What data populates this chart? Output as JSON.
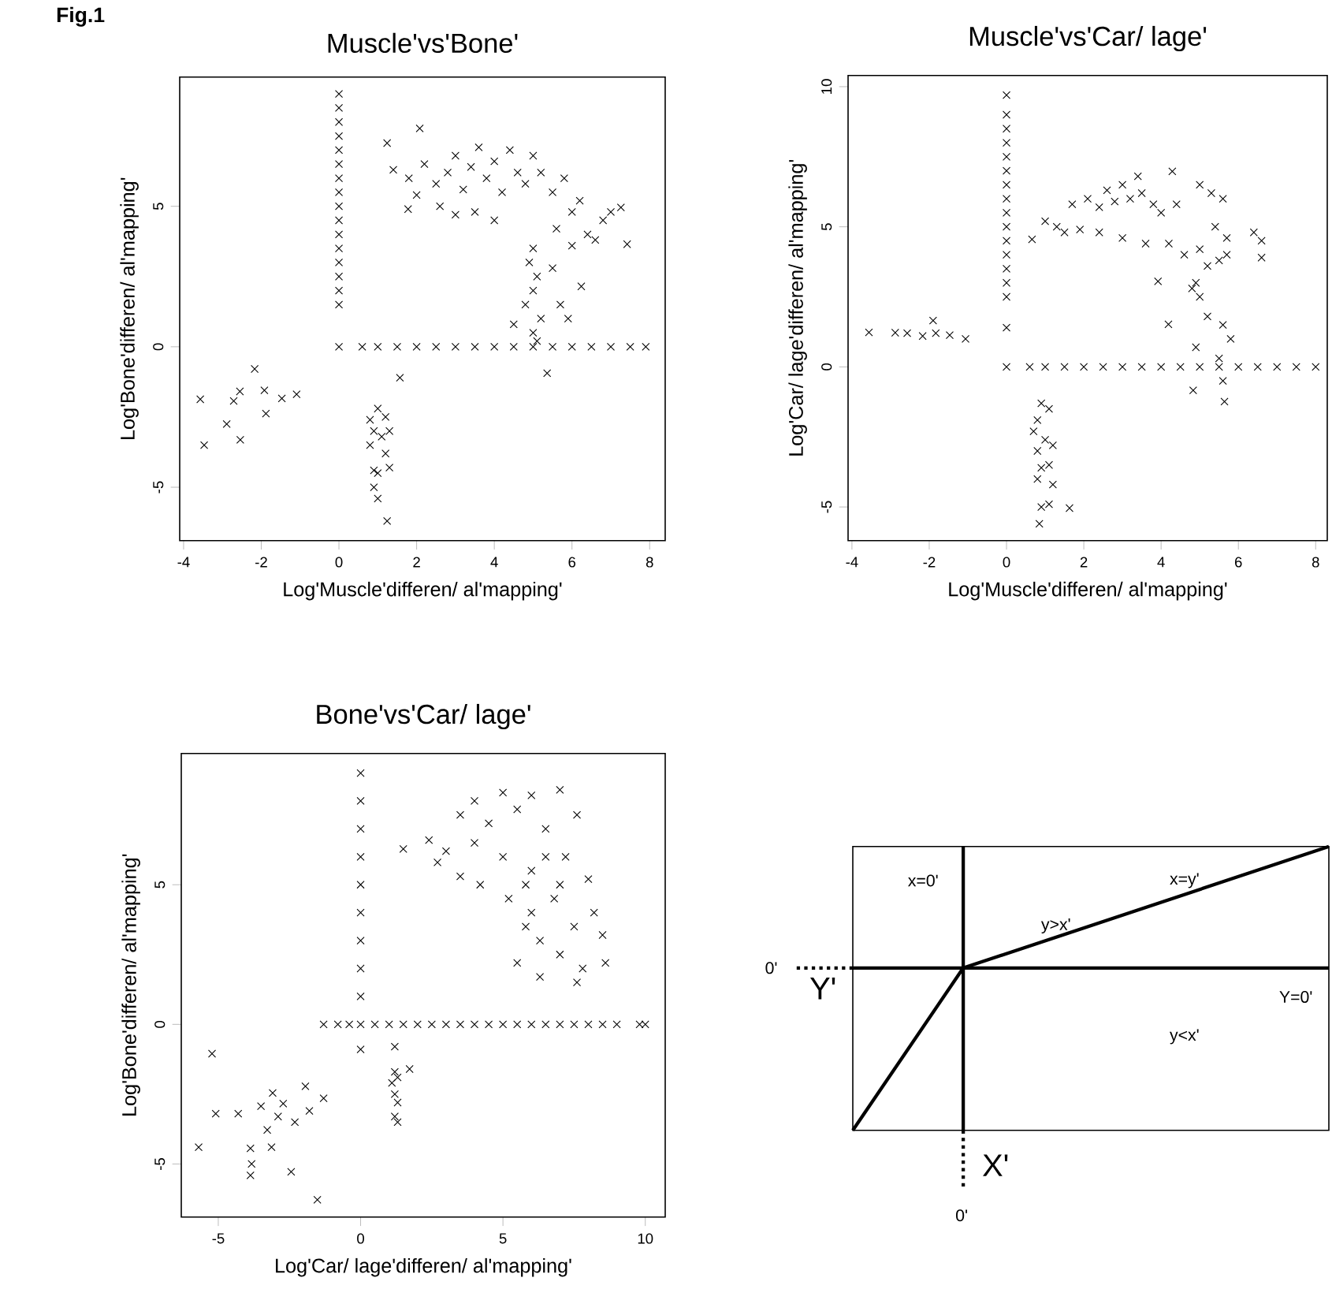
{
  "chart_data": [
    {
      "type": "scatter",
      "title": "Muscle'vs'Bone'",
      "xlabel": "Log'Muscle'differen/ al'mapping'",
      "ylabel": "Log'Bone'differen/ al'mapping'",
      "marker": "cross",
      "annotations": [
        "**Fig.1**"
      ],
      "xlim": [
        -4.1,
        8.4
      ],
      "ylim": [
        -6.9,
        9.6
      ],
      "xticks": [
        -4,
        -2,
        0,
        2,
        4,
        6,
        8
      ],
      "yticks": [
        -5,
        0,
        5
      ],
      "series": [
        {
          "color": "#000000",
          "x": [
            -3.57,
            -3.47,
            -2.89,
            -2.71,
            -2.55,
            -2.54,
            -2.17,
            -1.92,
            -1.88,
            -1.47,
            -1.09,
            0,
            0,
            0,
            0,
            0,
            0,
            0,
            0,
            0,
            0,
            0,
            0,
            0,
            0,
            0,
            0,
            0,
            0.6,
            1,
            1.5,
            2,
            2.5,
            3,
            3.5,
            4,
            4.5,
            5,
            5.5,
            6,
            6.5,
            7,
            7.5,
            7.9,
            1.0,
            0.8,
            1.2,
            0.9,
            1.1,
            1.3,
            0.8,
            1.2,
            0.9,
            1.0,
            1.3,
            0.9,
            1.0,
            1.24,
            1.57,
            1.24,
            2.08,
            1.4,
            1.8,
            2.2,
            2.5,
            2.8,
            3.0,
            3.2,
            3.4,
            3.6,
            3.8,
            4.0,
            4.2,
            4.4,
            4.6,
            4.8,
            5.0,
            5.2,
            2.0,
            2.6,
            3.0,
            3.5,
            4.0,
            1.78,
            5.5,
            5.8,
            6.0,
            6.2,
            6.4,
            6.6,
            6.0,
            5.6,
            6.8,
            7.0,
            7.26,
            7.42,
            6.24,
            5.0,
            4.9,
            5.1,
            5.0,
            4.8,
            5.2,
            5.0,
            5.1,
            5.5,
            5.7,
            5.9,
            4.5,
            5.36
          ],
          "values": [
            -1.87,
            -3.5,
            -2.75,
            -1.93,
            -1.59,
            -3.31,
            -0.79,
            -1.55,
            -2.38,
            -1.84,
            -1.69,
            0,
            1.5,
            2,
            2.5,
            3,
            3.5,
            4,
            4.5,
            5,
            5.5,
            6,
            6.5,
            7,
            7.5,
            8,
            8.5,
            9,
            0,
            0,
            0,
            0,
            0,
            0,
            0,
            0,
            0,
            0,
            0,
            0,
            0,
            0,
            0,
            0,
            -2.2,
            -2.6,
            -2.5,
            -3.0,
            -3.2,
            -3.0,
            -3.5,
            -3.8,
            -4.4,
            -4.5,
            -4.3,
            -5.0,
            -5.4,
            -6.2,
            -1.1,
            7.25,
            7.77,
            6.3,
            6.0,
            6.5,
            5.8,
            6.2,
            6.8,
            5.6,
            6.4,
            7.1,
            6.0,
            6.6,
            5.5,
            7.0,
            6.2,
            5.8,
            6.8,
            6.2,
            5.4,
            5.0,
            4.7,
            4.8,
            4.5,
            4.9,
            5.5,
            6.0,
            4.8,
            5.2,
            4.0,
            3.8,
            3.6,
            4.2,
            4.5,
            4.8,
            4.96,
            3.65,
            2.15,
            3.5,
            3.0,
            2.5,
            2.0,
            1.5,
            1.0,
            0.5,
            0.2,
            2.8,
            1.5,
            1.0,
            0.8,
            -0.94
          ]
        }
      ]
    },
    {
      "type": "scatter",
      "title": "Muscle'vs'Car/ lage'",
      "xlabel": "Log'Muscle'differen/ al'mapping'",
      "ylabel": "Log'Car/ lage'differen/ al'mapping'",
      "marker": "cross",
      "xlim": [
        -4.1,
        8.3
      ],
      "ylim": [
        -6.2,
        10.4
      ],
      "xticks": [
        -4,
        -2,
        0,
        2,
        4,
        6,
        8
      ],
      "yticks": [
        -5,
        0,
        5,
        10
      ],
      "series": [
        {
          "color": "#000000",
          "x": [
            -3.56,
            -2.88,
            -2.57,
            -2.17,
            -1.9,
            -1.83,
            -1.47,
            -1.06,
            0,
            0,
            0,
            0,
            0,
            0,
            0,
            0,
            0,
            0,
            0,
            0,
            0,
            0,
            0,
            0,
            0,
            0.6,
            1,
            1.5,
            2,
            2.5,
            3,
            3.5,
            4,
            4.5,
            5,
            5.5,
            6,
            6.5,
            7,
            7.5,
            8,
            0.9,
            0.8,
            1.1,
            0.7,
            1.0,
            1.2,
            0.8,
            0.9,
            1.1,
            0.8,
            1.2,
            0.9,
            1.1,
            0.85,
            1.63,
            0.66,
            1.0,
            1.3,
            1.5,
            1.9,
            1.7,
            2.1,
            2.4,
            2.6,
            2.8,
            3.0,
            3.2,
            3.4,
            3.5,
            3.8,
            4.0,
            2.4,
            3.0,
            3.6,
            4.2,
            4.4,
            4.29,
            5.0,
            5.3,
            5.6,
            5.4,
            5.0,
            4.6,
            5.7,
            6.4,
            6.6,
            6.6,
            5.2,
            5.5,
            5.7,
            4.9,
            5.0,
            5.2,
            5.6,
            5.8,
            4.8,
            3.92,
            4.19,
            4.9,
            5.5,
            4.83,
            5.6,
            5.64
          ],
          "values": [
            1.23,
            1.22,
            1.2,
            1.1,
            1.65,
            1.2,
            1.13,
            1.0,
            0,
            1.4,
            2.5,
            3,
            3.5,
            4,
            4.5,
            5,
            5.5,
            6,
            6.5,
            7,
            7.5,
            8,
            8.5,
            9,
            9.7,
            0,
            0,
            0,
            0,
            0,
            0,
            0,
            0,
            0,
            0,
            0,
            0,
            0,
            0,
            0,
            0,
            -1.3,
            -1.9,
            -1.5,
            -2.3,
            -2.6,
            -2.8,
            -3.0,
            -3.6,
            -3.5,
            -4.0,
            -4.2,
            -5.0,
            -4.9,
            -5.6,
            -5.04,
            4.55,
            5.2,
            5.0,
            4.8,
            4.9,
            5.8,
            6.0,
            5.7,
            6.3,
            5.9,
            6.5,
            6.0,
            6.8,
            6.2,
            5.8,
            5.5,
            4.8,
            4.6,
            4.4,
            4.4,
            5.8,
            6.98,
            6.5,
            6.2,
            6.0,
            5.0,
            4.2,
            4.0,
            4.6,
            4.8,
            4.5,
            3.9,
            3.6,
            3.8,
            4.0,
            3.0,
            2.5,
            1.8,
            1.5,
            1.0,
            2.8,
            3.05,
            1.52,
            0.7,
            0.3,
            -0.84,
            -0.5,
            -1.24
          ]
        }
      ]
    },
    {
      "type": "scatter",
      "title": "Bone'vs'Car/ lage'",
      "xlabel": "Log'Car/ lage'differen/ al'mapping'",
      "ylabel": "Log'Bone'differen/ al'mapping'",
      "marker": "cross",
      "xlim": [
        -6.3,
        10.7
      ],
      "ylim": [
        -6.9,
        9.7
      ],
      "xticks": [
        -5,
        0,
        5,
        10
      ],
      "yticks": [
        -5,
        0,
        5
      ],
      "series": [
        {
          "color": "#000000",
          "x": [
            -5.69,
            -5.22,
            -5.09,
            -4.3,
            -3.87,
            -3.87,
            -3.5,
            -3.09,
            -3.13,
            -2.72,
            -2.44,
            -2.31,
            -1.94,
            -1.52,
            -1.3,
            -3.83,
            -3.28,
            -2.9,
            -1.8,
            0,
            0,
            0,
            0,
            0,
            0,
            0,
            0,
            0,
            0,
            0,
            -1.3,
            -0.8,
            -0.4,
            0.5,
            1,
            1.5,
            2,
            2.5,
            3,
            3.5,
            4,
            4.5,
            5,
            5.5,
            6,
            6.5,
            7,
            7.5,
            8,
            8.5,
            9,
            9.8,
            10.0,
            1.2,
            1.2,
            1.3,
            1.1,
            1.2,
            1.3,
            1.2,
            1.3,
            1.72,
            1.5,
            2.4,
            2.7,
            3.0,
            3.5,
            3.5,
            4,
            4,
            4.2,
            4.5,
            5,
            5,
            5.2,
            5.5,
            5.8,
            6,
            6,
            6.3,
            6.5,
            6.8,
            7,
            7,
            7.2,
            7.5,
            7.6,
            7.8,
            8,
            8.2,
            8.5,
            8.6,
            6.3,
            7.6,
            5.5,
            6.0,
            6.5,
            5.8,
            7.0
          ],
          "values": [
            -4.4,
            -1.05,
            -3.2,
            -3.2,
            -4.44,
            -5.41,
            -2.93,
            -2.46,
            -4.4,
            -2.84,
            -5.28,
            -3.5,
            -2.22,
            -6.28,
            -2.65,
            -5.0,
            -3.78,
            -3.3,
            -3.1,
            -0.9,
            1,
            2,
            3,
            4,
            5,
            6,
            7,
            8,
            9,
            0,
            0,
            0,
            0,
            0,
            0,
            0,
            0,
            0,
            0,
            0,
            0,
            0,
            0,
            0,
            0,
            0,
            0,
            0,
            0,
            0,
            0,
            0,
            0,
            -0.8,
            -1.7,
            -1.9,
            -2.1,
            -2.5,
            -2.8,
            -3.3,
            -3.5,
            -1.6,
            6.28,
            6.6,
            5.8,
            6.2,
            7.5,
            5.3,
            8,
            6.5,
            5.0,
            7.2,
            8.3,
            6,
            4.5,
            7.7,
            3.5,
            8.2,
            5.5,
            3,
            7,
            4.5,
            8.4,
            2.5,
            6,
            3.5,
            7.5,
            2,
            5.2,
            4,
            3.2,
            2.2,
            1.7,
            1.5,
            2.2,
            4.0,
            6.0,
            5.0,
            5.0
          ]
        }
      ]
    },
    {
      "type": "other",
      "xlabel": "X'",
      "ylabel": "Y'",
      "annotations": [
        "x=0'",
        "y>x'",
        "x=y'",
        "y<x'",
        "0'",
        "Y=0'",
        "0'"
      ]
    }
  ]
}
